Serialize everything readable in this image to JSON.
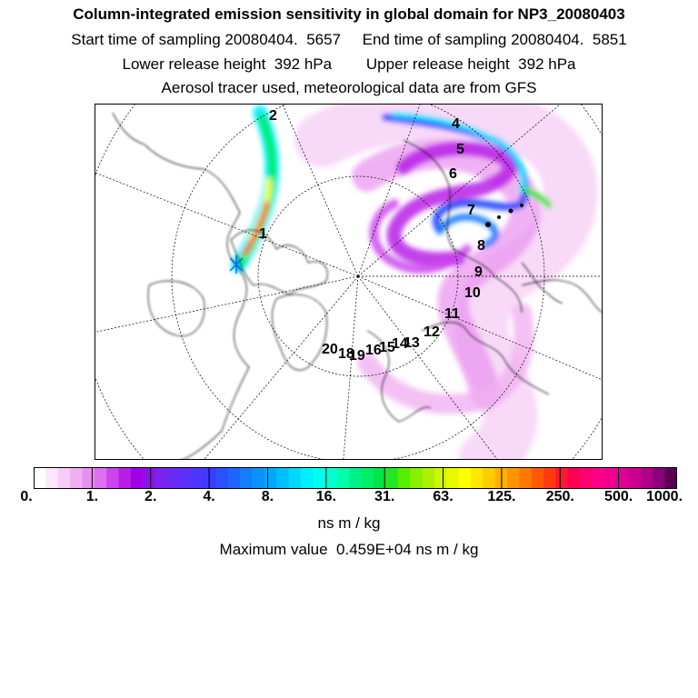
{
  "chart_data": {
    "type": "heatmap",
    "title": "Column-integrated emission sensitivity in global domain for NP3_20080403",
    "subtitle_lines": [
      "Start time of sampling 20080404.  5657     End time of sampling 20080404.  5851",
      "Lower release height  392 hPa        Upper release height  392 hPa",
      "Aerosol tracer used, meteorological data are from GFS"
    ],
    "colorbar": {
      "tick_labels": [
        "0.",
        "1.",
        "2.",
        "4.",
        "8.",
        "16.",
        "31.",
        "63.",
        "125.",
        "250.",
        "500.",
        "1000."
      ],
      "colors": [
        "#ffffff",
        "#fbe6fb",
        "#f6ccf6",
        "#f0b0f0",
        "#e890f0",
        "#dd6ff0",
        "#cc44ee",
        "#b81ee8",
        "#9f00e6",
        "#8a14e8",
        "#7a22ee",
        "#6a2cf4",
        "#5a32fa",
        "#4a36fc",
        "#3a3cff",
        "#2a50ff",
        "#1e66ff",
        "#147cff",
        "#0a92ff",
        "#00a8ff",
        "#00c0ff",
        "#00d8ff",
        "#00f0ff",
        "#00ffee",
        "#00ffcc",
        "#00ffaa",
        "#00f088",
        "#00ee66",
        "#00e644",
        "#22e622",
        "#55ee00",
        "#88f000",
        "#aaf200",
        "#ccf500",
        "#e8f800",
        "#ffff00",
        "#ffe600",
        "#ffcc00",
        "#ffb000",
        "#ff9400",
        "#ff7800",
        "#ff5a00",
        "#ff3a10",
        "#ff1830",
        "#ff0050",
        "#ff0070",
        "#ff0088",
        "#f00090",
        "#e00094",
        "#cc0090",
        "#b0008a",
        "#8a0078",
        "#5a0050"
      ]
    },
    "units": "ns m / kg",
    "maximum_text": "Maximum value  0.459E+04 ns m / kg",
    "day_labels": [
      "1",
      "2",
      "4",
      "5",
      "6",
      "7",
      "8",
      "9",
      "10",
      "11",
      "12",
      "13",
      "14",
      "15",
      "16",
      "18",
      "19",
      "20"
    ]
  }
}
